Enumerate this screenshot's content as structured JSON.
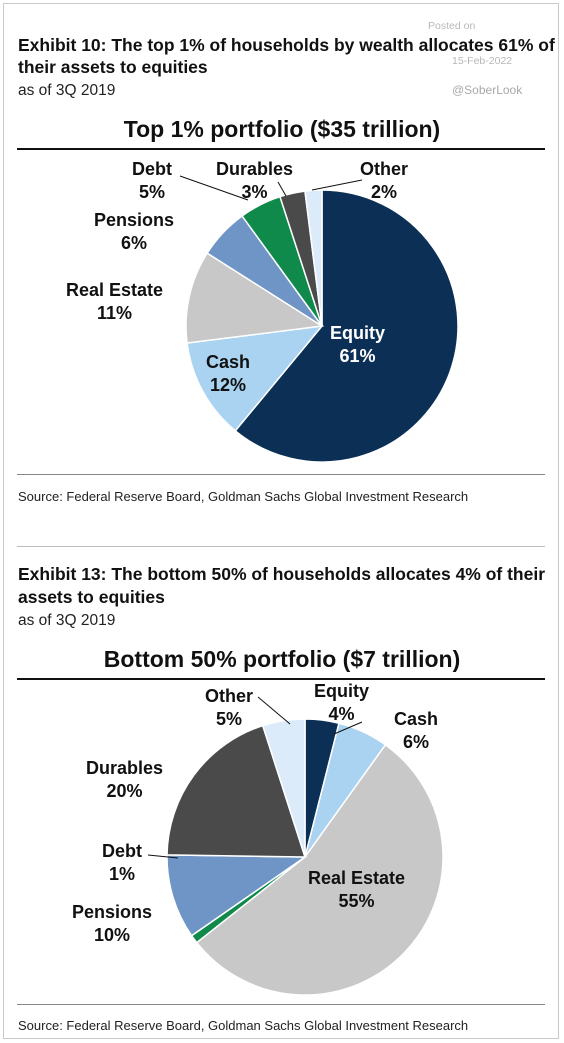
{
  "watermark": {
    "posted_on": "Posted on",
    "date": "15-Feb-2022",
    "handle": "@SoberLook"
  },
  "exhibits": [
    {
      "title_line1": "Exhibit 10: The top 1% of households by wealth allocates 61% of",
      "title_line2": "their assets to equities",
      "subtitle": "as of 3Q 2019",
      "source": "Source: Federal Reserve Board, Goldman Sachs Global Investment Research"
    },
    {
      "title_line1": "Exhibit 13: The bottom 50% of households allocates 4% of their",
      "title_line2": "assets to equities",
      "subtitle": "as of 3Q 2019",
      "source": "Source: Federal Reserve Board, Goldman Sachs Global Investment Research"
    }
  ],
  "colors": {
    "Equity": "#0b2f55",
    "Cash": "#a9d3f0",
    "Real Estate": "#c8c8c8",
    "Pensions": "#6f94c6",
    "Debt": "#0f8a4a",
    "Durables": "#4a4a4a",
    "Other": "#dcebfa"
  },
  "chart_data": [
    {
      "type": "pie",
      "title": "Top 1% portfolio ($35 trillion)",
      "labels": [
        "Equity",
        "Cash",
        "Real Estate",
        "Pensions",
        "Debt",
        "Durables",
        "Other"
      ],
      "values": [
        61,
        12,
        11,
        6,
        5,
        3,
        2
      ],
      "value_labels": [
        "61%",
        "12%",
        "11%",
        "6%",
        "5%",
        "3%",
        "2%"
      ]
    },
    {
      "type": "pie",
      "title": "Bottom 50% portfolio ($7 trillion)",
      "labels": [
        "Equity",
        "Cash",
        "Real Estate",
        "Pensions",
        "Debt",
        "Durables",
        "Other"
      ],
      "values": [
        4,
        6,
        55,
        10,
        1,
        20,
        5
      ],
      "value_labels": [
        "4%",
        "6%",
        "55%",
        "10%",
        "1%",
        "20%",
        "5%"
      ]
    }
  ]
}
